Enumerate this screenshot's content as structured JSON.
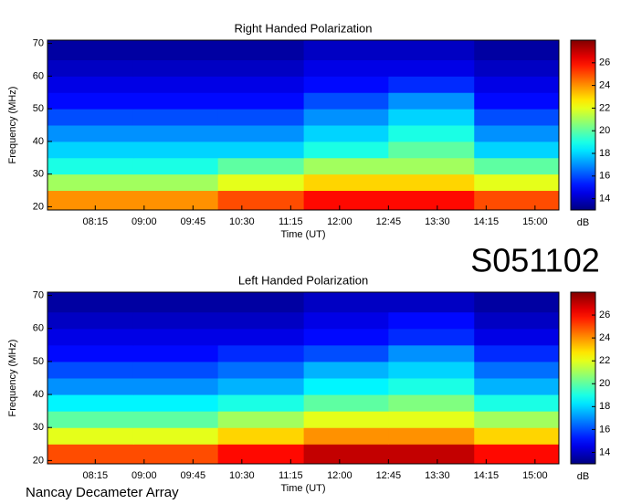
{
  "page": {
    "label": "S051102",
    "footer": "Nancay Decameter Array"
  },
  "chart_data": [
    {
      "type": "heatmap",
      "title": "Right Handed Polarization",
      "xlabel": "Time (UT)",
      "ylabel": "Frequency (MHz)",
      "colorbar_label": "dB",
      "colormap": "jet",
      "xlim": [
        451,
        922
      ],
      "xticks": [
        {
          "value": 495,
          "label": "08:15"
        },
        {
          "value": 540,
          "label": "09:00"
        },
        {
          "value": 585,
          "label": "09:45"
        },
        {
          "value": 630,
          "label": "10:30"
        },
        {
          "value": 675,
          "label": "11:15"
        },
        {
          "value": 720,
          "label": "12:00"
        },
        {
          "value": 765,
          "label": "12:45"
        },
        {
          "value": 810,
          "label": "13:30"
        },
        {
          "value": 855,
          "label": "14:15"
        },
        {
          "value": 900,
          "label": "15:00"
        }
      ],
      "ylim": [
        19,
        71
      ],
      "yticks": [
        20,
        30,
        40,
        50,
        60,
        70
      ],
      "clim": [
        13,
        28
      ],
      "cticks": [
        14,
        16,
        18,
        20,
        22,
        24,
        26
      ],
      "xbins": [
        451,
        530,
        608,
        687,
        765,
        844,
        922
      ],
      "ybins": [
        19,
        25,
        30,
        35,
        40,
        45,
        50,
        55,
        60,
        65,
        71
      ],
      "z": [
        [
          24,
          24,
          25,
          26,
          26,
          25
        ],
        [
          21,
          21,
          22,
          23,
          23,
          22
        ],
        [
          19,
          19,
          20,
          21,
          21,
          20
        ],
        [
          18,
          18,
          18,
          19,
          20,
          18
        ],
        [
          17,
          17,
          17,
          18,
          19,
          17
        ],
        [
          16,
          16,
          16,
          17,
          18,
          16
        ],
        [
          15,
          15,
          15,
          16,
          17,
          15
        ],
        [
          14.5,
          14.5,
          14.5,
          15,
          15.5,
          14.5
        ],
        [
          14,
          14,
          14,
          14.5,
          14.5,
          14
        ],
        [
          13.5,
          13.5,
          13.5,
          14,
          14,
          13.5
        ]
      ]
    },
    {
      "type": "heatmap",
      "title": "Left Handed Polarization",
      "xlabel": "Time (UT)",
      "ylabel": "Frequency (MHz)",
      "colorbar_label": "dB",
      "colormap": "jet",
      "xlim": [
        451,
        922
      ],
      "xticks": [
        {
          "value": 495,
          "label": "08:15"
        },
        {
          "value": 540,
          "label": "09:00"
        },
        {
          "value": 585,
          "label": "09:45"
        },
        {
          "value": 630,
          "label": "10:30"
        },
        {
          "value": 675,
          "label": "11:15"
        },
        {
          "value": 720,
          "label": "12:00"
        },
        {
          "value": 765,
          "label": "12:45"
        },
        {
          "value": 810,
          "label": "13:30"
        },
        {
          "value": 855,
          "label": "14:15"
        },
        {
          "value": 900,
          "label": "15:00"
        }
      ],
      "ylim": [
        19,
        71
      ],
      "yticks": [
        20,
        30,
        40,
        50,
        60,
        70
      ],
      "clim": [
        13,
        28
      ],
      "cticks": [
        14,
        16,
        18,
        20,
        22,
        24,
        26
      ],
      "xbins": [
        451,
        530,
        608,
        687,
        765,
        844,
        922
      ],
      "ybins": [
        19,
        25,
        30,
        35,
        40,
        45,
        50,
        55,
        60,
        65,
        71
      ],
      "z": [
        [
          25,
          25,
          26,
          27,
          27,
          26
        ],
        [
          22,
          22,
          23,
          24,
          24,
          23
        ],
        [
          20,
          20,
          21,
          22,
          22,
          21
        ],
        [
          18.5,
          18.5,
          19,
          20,
          20.5,
          19
        ],
        [
          17,
          17,
          17.5,
          18.5,
          19,
          17.5
        ],
        [
          16,
          16,
          16.5,
          17.5,
          18,
          16.5
        ],
        [
          15,
          15,
          15.5,
          16,
          17,
          15.5
        ],
        [
          14.5,
          14.5,
          14.5,
          15,
          15.5,
          14.5
        ],
        [
          14,
          14,
          14,
          14.5,
          15,
          14
        ],
        [
          13.5,
          13.5,
          13.5,
          14,
          14,
          13.5
        ]
      ]
    }
  ]
}
